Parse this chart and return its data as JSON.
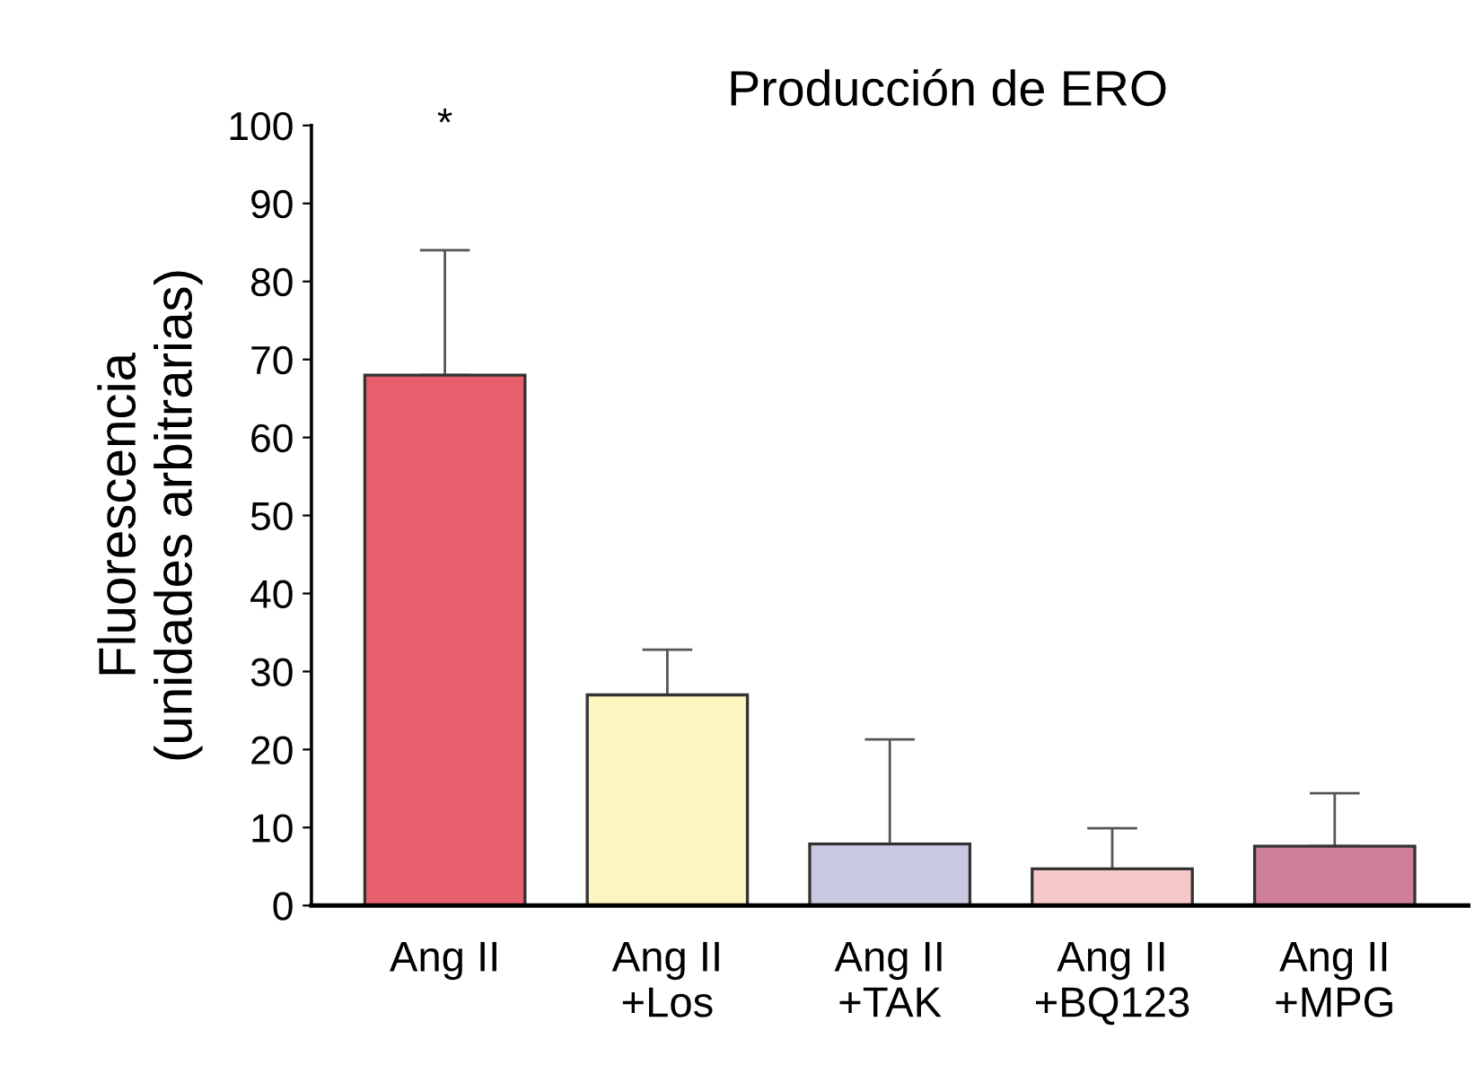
{
  "chart_data": {
    "type": "bar",
    "title": "Producción de ERO",
    "ylabel": "Fluorescencia\n(unidades arbitrarias)",
    "categories": [
      "Ang II",
      "Ang II\n+Los",
      "Ang II\n+TAK",
      "Ang II\n+BQ123",
      "Ang II\n+MPG"
    ],
    "values": [
      68,
      27,
      7.9,
      4.7,
      7.6
    ],
    "errors": [
      [
        68,
        84
      ],
      [
        27,
        32.8
      ],
      [
        7.9,
        21.3
      ],
      [
        4.7,
        9.9
      ],
      [
        7.6,
        14.4
      ]
    ],
    "colors": [
      "#e8606e",
      "#fbf5c0",
      "#c8c8e0",
      "#f7c8c8",
      "#d07f98"
    ],
    "ylim": [
      0,
      100
    ],
    "yticks": [
      0,
      10,
      20,
      30,
      40,
      50,
      60,
      70,
      80,
      90,
      100
    ],
    "annotations": [
      "*"
    ],
    "grid": false
  }
}
